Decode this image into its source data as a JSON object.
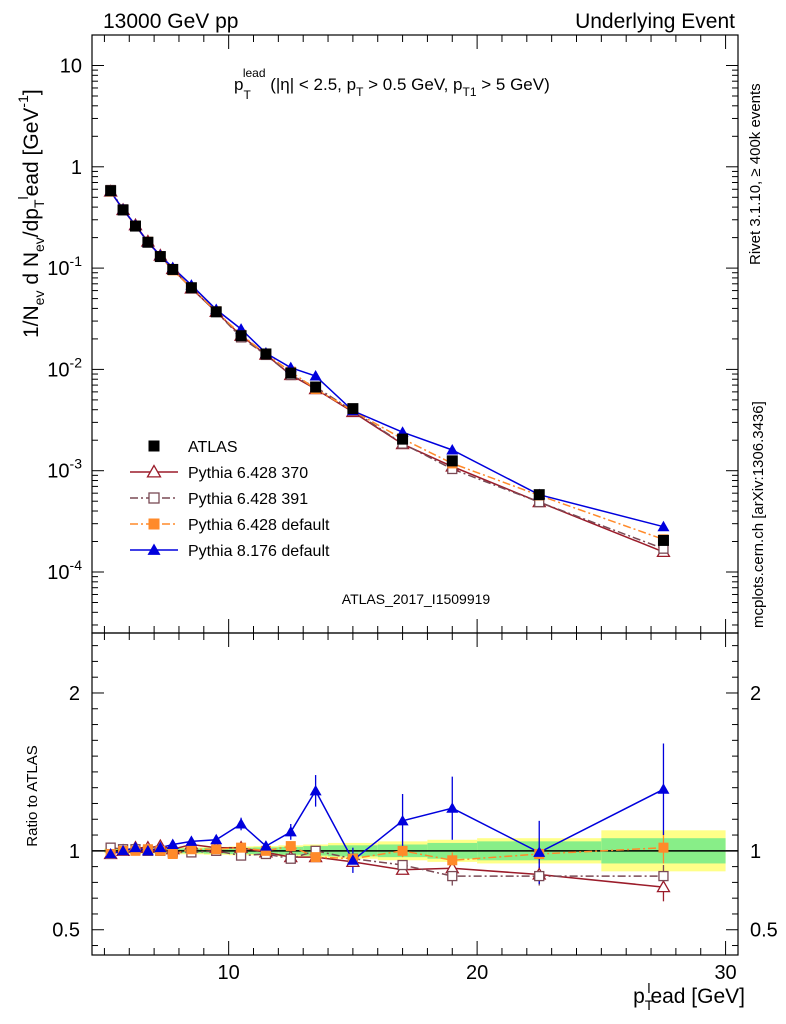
{
  "header": {
    "left": "13000 GeV pp",
    "right": "Underlying Event"
  },
  "side": {
    "rivet": "Rivet 3.1.10, ≥ 400k events",
    "mcplots": "mcplots.cern.ch [arXiv:1306.3436]"
  },
  "chart_data": [
    {
      "type": "line",
      "panel": "main",
      "title": "p_T^lead (|η| < 2.5, p_T > 0.5 GeV, p_T1 > 5 GeV)",
      "watermark": "ATLAS_2017_I1509919",
      "ylabel": "1/N_ev d N_ev/dp_T^lead [GeV^-1]",
      "yscale": "log",
      "ylim": [
        2.5e-05,
        20
      ],
      "xlim": [
        4.5,
        30.5
      ],
      "grid": false,
      "legend_position": "bottom-left",
      "y_tick_labels": [
        "10^-4",
        "10^-3",
        "10^-2",
        "10^-1",
        "1",
        "10"
      ],
      "x": [
        5.25,
        5.75,
        6.25,
        6.75,
        7.25,
        7.75,
        8.5,
        9.5,
        10.5,
        11.5,
        12.5,
        13.5,
        15.0,
        17.0,
        19.0,
        22.5,
        27.5
      ],
      "series": [
        {
          "name": "ATLAS",
          "color": "#000000",
          "marker": "filled-square",
          "style": "points",
          "values": [
            0.58,
            0.375,
            0.26,
            0.18,
            0.13,
            0.097,
            0.064,
            0.037,
            0.0215,
            0.0142,
            0.0092,
            0.0067,
            0.0041,
            0.00205,
            0.00125,
            0.00058,
            0.000205
          ]
        },
        {
          "name": "Pythia 6.428 370",
          "color": "#9b1c2a",
          "marker": "open-triangle",
          "style": "solid",
          "values": [
            0.57,
            0.375,
            0.265,
            0.183,
            0.133,
            0.098,
            0.063,
            0.037,
            0.0215,
            0.014,
            0.0088,
            0.0064,
            0.0038,
            0.00183,
            0.0011,
            0.00049,
            0.000158
          ]
        },
        {
          "name": "Pythia 6.428 391",
          "color": "#7a4a55",
          "marker": "open-square",
          "style": "dash-dot",
          "values": [
            0.59,
            0.38,
            0.262,
            0.18,
            0.13,
            0.097,
            0.063,
            0.037,
            0.0207,
            0.0139,
            0.0088,
            0.0067,
            0.0039,
            0.00185,
            0.00104,
            0.00049,
            0.00017
          ]
        },
        {
          "name": "Pythia 6.428 default",
          "color": "#ff8a2a",
          "marker": "filled-square",
          "style": "dash-dot",
          "values": [
            0.57,
            0.375,
            0.262,
            0.182,
            0.13,
            0.095,
            0.064,
            0.0375,
            0.022,
            0.0142,
            0.0095,
            0.0064,
            0.0039,
            0.00206,
            0.00118,
            0.00057,
            0.00021
          ]
        },
        {
          "name": "Pythia 8.176 default",
          "color": "#0000dd",
          "marker": "filled-triangle",
          "style": "solid",
          "values": [
            0.57,
            0.38,
            0.265,
            0.18,
            0.133,
            0.101,
            0.068,
            0.039,
            0.025,
            0.0145,
            0.0104,
            0.0086,
            0.0039,
            0.0024,
            0.0016,
            0.00058,
            0.00028
          ]
        }
      ]
    },
    {
      "type": "line",
      "panel": "ratio",
      "ylabel": "Ratio to ATLAS",
      "xlabel": "p_T^lead [GeV]",
      "xlim": [
        4.5,
        30.5
      ],
      "ylim": [
        0.34,
        2.38
      ],
      "yticks": [
        0.5,
        1,
        2
      ],
      "xticks": [
        10,
        20,
        30
      ],
      "bin_edges": [
        5.0,
        5.5,
        6.0,
        6.5,
        7.0,
        7.5,
        8.0,
        9.0,
        10.0,
        11.0,
        12.0,
        13.0,
        14.0,
        16.0,
        18.0,
        20.0,
        25.0,
        30.0
      ],
      "x": [
        5.25,
        5.75,
        6.25,
        6.75,
        7.25,
        7.75,
        8.5,
        9.5,
        10.5,
        11.5,
        12.5,
        13.5,
        15.0,
        17.0,
        19.0,
        22.5,
        27.5
      ],
      "band_stat": [
        0.01,
        0.01,
        0.01,
        0.012,
        0.012,
        0.015,
        0.015,
        0.018,
        0.02,
        0.022,
        0.025,
        0.03,
        0.035,
        0.04,
        0.05,
        0.06,
        0.08
      ],
      "band_total": [
        0.015,
        0.015,
        0.02,
        0.02,
        0.02,
        0.022,
        0.022,
        0.025,
        0.028,
        0.03,
        0.035,
        0.04,
        0.05,
        0.06,
        0.07,
        0.08,
        0.13
      ],
      "series": [
        {
          "name": "Pythia 6.428 370",
          "values": [
            0.98,
            1.0,
            1.02,
            1.02,
            1.03,
            1.01,
            1.04,
            1.02,
            1.02,
            0.99,
            0.96,
            0.96,
            0.93,
            0.88,
            0.89,
            0.85,
            0.77
          ],
          "errors": [
            0.01,
            0.01,
            0.01,
            0.012,
            0.012,
            0.012,
            0.015,
            0.018,
            0.02,
            0.022,
            0.025,
            0.03,
            0.03,
            0.03,
            0.04,
            0.05,
            0.09
          ]
        },
        {
          "name": "Pythia 6.428 391",
          "values": [
            1.02,
            1.01,
            1.01,
            1.0,
            1.0,
            0.99,
            0.99,
            1.0,
            0.97,
            0.98,
            0.95,
            1.0,
            0.95,
            0.91,
            0.84,
            0.84,
            0.84
          ],
          "errors": [
            0.01,
            0.01,
            0.01,
            0.012,
            0.012,
            0.012,
            0.015,
            0.018,
            0.02,
            0.022,
            0.025,
            0.03,
            0.03,
            0.03,
            0.06,
            0.06,
            0.07
          ]
        },
        {
          "name": "Pythia 6.428 default",
          "values": [
            0.98,
            1.0,
            1.0,
            1.01,
            1.0,
            0.98,
            1.01,
            1.01,
            1.02,
            1.0,
            1.03,
            0.96,
            0.95,
            1.0,
            0.94,
            0.98,
            1.02
          ],
          "errors": [
            0.01,
            0.01,
            0.01,
            0.012,
            0.012,
            0.012,
            0.015,
            0.018,
            0.02,
            0.022,
            0.025,
            0.03,
            0.03,
            0.04,
            0.05,
            0.06,
            0.1
          ]
        },
        {
          "name": "Pythia 8.176 default",
          "values": [
            0.98,
            1.0,
            1.02,
            1.0,
            1.02,
            1.04,
            1.06,
            1.07,
            1.17,
            1.03,
            1.12,
            1.38,
            0.94,
            1.19,
            1.27,
            0.99,
            1.39
          ],
          "errors": [
            0.01,
            0.01,
            0.01,
            0.012,
            0.012,
            0.015,
            0.02,
            0.025,
            0.04,
            0.03,
            0.05,
            0.1,
            0.08,
            0.17,
            0.2,
            0.2,
            0.29
          ]
        }
      ]
    }
  ]
}
